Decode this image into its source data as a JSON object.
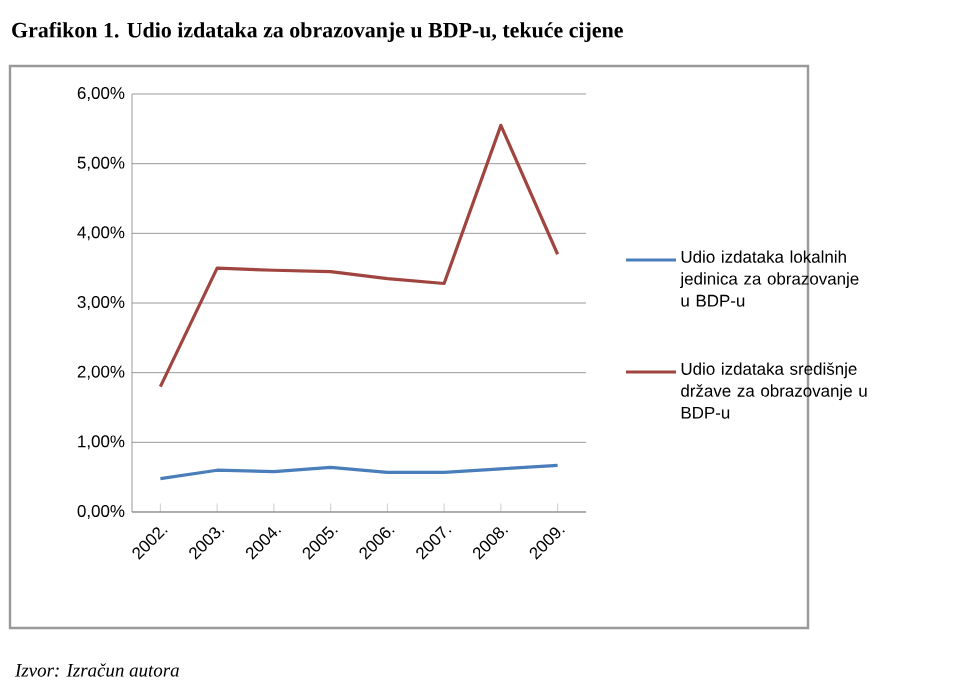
{
  "chart_data": {
    "type": "line",
    "title": "Grafikon 1. Udio izdataka za obrazovanje u BDP-u, tekuće cijene",
    "categories": [
      "2002.",
      "2003.",
      "2004.",
      "2005.",
      "2006.",
      "2007.",
      "2008.",
      "2009."
    ],
    "series": [
      {
        "name": "Udio izdataka lokalnih jedinica za obrazovanje u BDP-u",
        "color": "#4a7ebb",
        "values": [
          0.48,
          0.6,
          0.58,
          0.64,
          0.57,
          0.57,
          0.62,
          0.67
        ]
      },
      {
        "name": "Udio izdataka središnje države za obrazovanje u BDP-u",
        "color": "#a0443f",
        "values": [
          1.8,
          3.5,
          3.47,
          3.45,
          3.35,
          3.28,
          5.55,
          3.7
        ]
      }
    ],
    "ylim": [
      0,
      6
    ],
    "yticks": [
      {
        "value": 0,
        "label": "0,00%"
      },
      {
        "value": 1,
        "label": "1,00%"
      },
      {
        "value": 2,
        "label": "2,00%"
      },
      {
        "value": 3,
        "label": "3,00%"
      },
      {
        "value": 4,
        "label": "4,00%"
      },
      {
        "value": 5,
        "label": "5,00%"
      },
      {
        "value": 6,
        "label": "6,00%"
      }
    ],
    "grid": "y",
    "legend": "right",
    "annotations": [
      "Izvor: Izračun autora"
    ]
  }
}
